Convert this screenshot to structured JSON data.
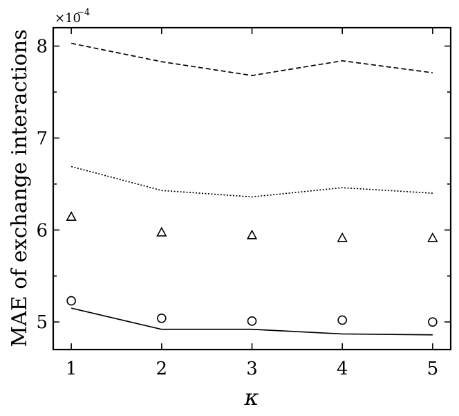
{
  "chart_data": {
    "type": "line",
    "title": "",
    "xlabel": "κ",
    "ylabel": "MAE of exchange interactions",
    "y_multiplier_label": "×10",
    "y_multiplier_exponent": "−4",
    "xlim": [
      0.8,
      5.2
    ],
    "ylim": [
      4.7,
      8.2
    ],
    "x_ticks": [
      1,
      2,
      3,
      4,
      5
    ],
    "y_ticks": [
      5,
      6,
      7,
      8
    ],
    "grid": false,
    "legend": "none",
    "series": [
      {
        "style": "dashed",
        "marker": "none",
        "x": [
          1,
          2,
          3,
          4,
          5
        ],
        "y": [
          8.03,
          7.83,
          7.68,
          7.84,
          7.71
        ]
      },
      {
        "style": "dotted",
        "marker": "none",
        "x": [
          1,
          2,
          3,
          4,
          5
        ],
        "y": [
          6.69,
          6.43,
          6.36,
          6.46,
          6.4
        ]
      },
      {
        "style": "none",
        "marker": "triangle",
        "x": [
          1,
          2,
          3,
          4,
          5
        ],
        "y": [
          6.14,
          5.97,
          5.94,
          5.91,
          5.91
        ]
      },
      {
        "style": "none",
        "marker": "circle",
        "x": [
          1,
          2,
          3,
          4,
          5
        ],
        "y": [
          5.23,
          5.04,
          5.01,
          5.02,
          5.0
        ]
      },
      {
        "style": "solid",
        "marker": "none",
        "x": [
          1,
          2,
          3,
          4,
          5
        ],
        "y": [
          5.15,
          4.92,
          4.92,
          4.87,
          4.86
        ]
      }
    ]
  }
}
